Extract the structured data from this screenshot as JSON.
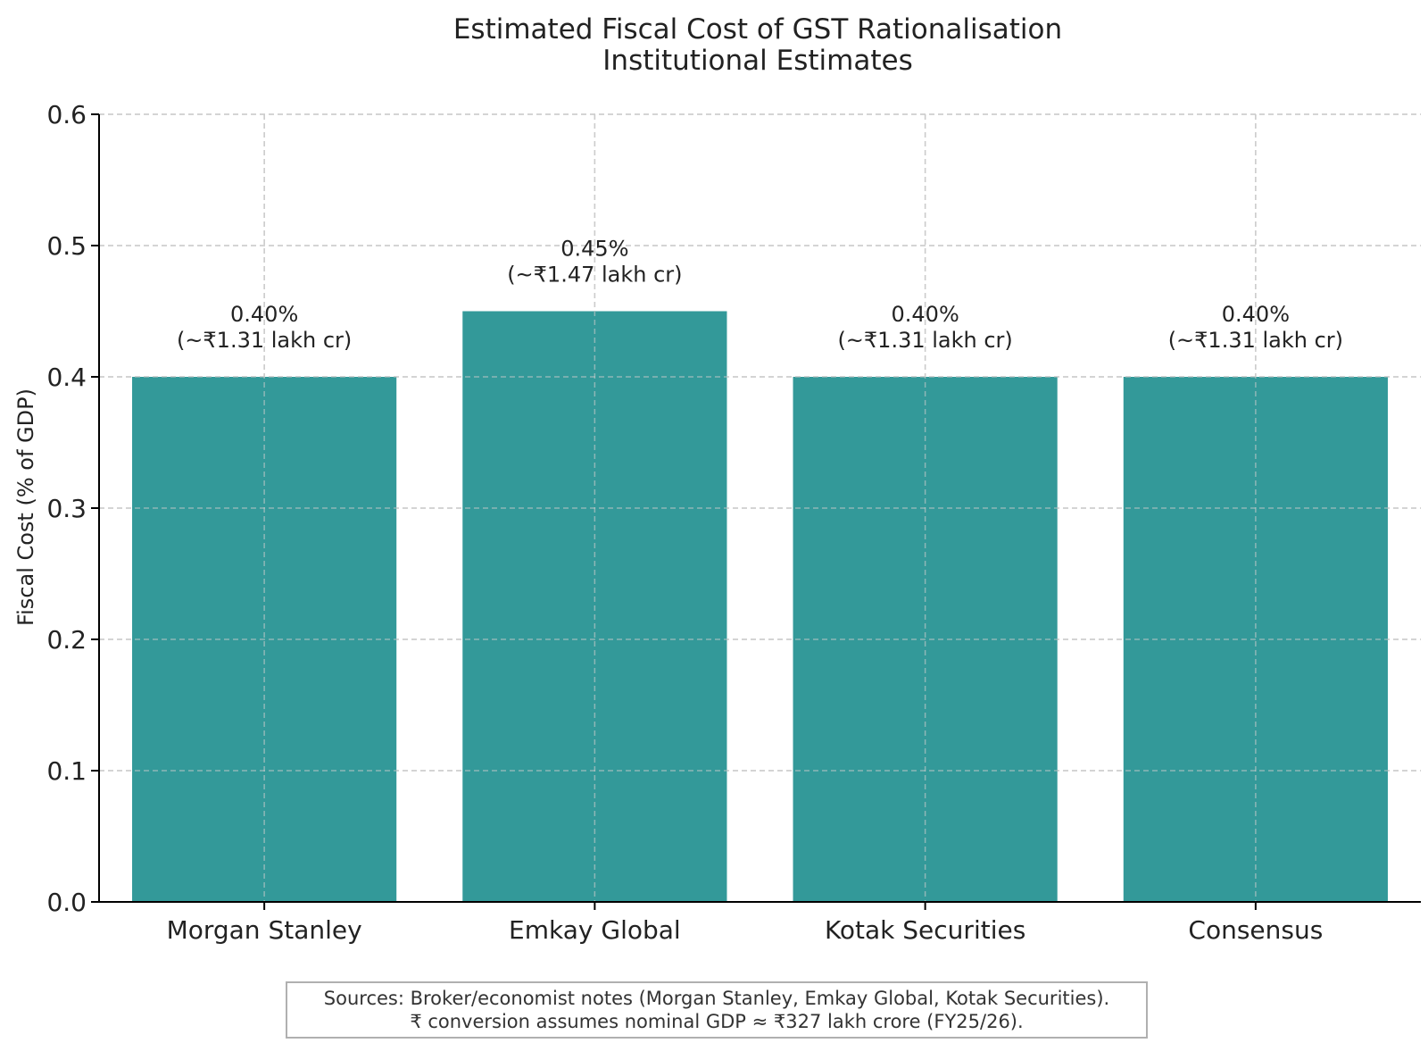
{
  "chart_data": {
    "type": "bar",
    "title": "Estimated Fiscal Cost of GST Rationalisation",
    "subtitle": "Institutional Estimates",
    "xlabel": "",
    "ylabel": "Fiscal Cost (% of GDP)",
    "categories": [
      "Morgan Stanley",
      "Emkay Global",
      "Kotak Securities",
      "Consensus"
    ],
    "values": [
      0.4,
      0.45,
      0.4,
      0.4
    ],
    "data_labels": [
      [
        "0.40%",
        "(~₹1.31 lakh cr)"
      ],
      [
        "0.45%",
        "(~₹1.47 lakh cr)"
      ],
      [
        "0.40%",
        "(~₹1.31 lakh cr)"
      ],
      [
        "0.40%",
        "(~₹1.31 lakh cr)"
      ]
    ],
    "ylim": [
      0,
      0.6
    ],
    "yticks": [
      "0.0",
      "0.1",
      "0.2",
      "0.3",
      "0.4",
      "0.5",
      "0.6"
    ],
    "grid": true,
    "bar_color": "#339999",
    "grid_color": "#cccccc"
  },
  "note": {
    "line1": "Sources: Broker/economist notes (Morgan Stanley, Emkay Global, Kotak Securities).",
    "line2": "₹ conversion assumes nominal GDP ≈ ₹327 lakh crore (FY25/26)."
  }
}
